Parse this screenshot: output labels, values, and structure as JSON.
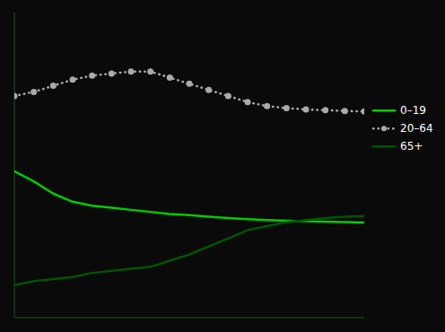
{
  "chart_data": {
    "type": "line",
    "x": [
      1971,
      1976,
      1981,
      1986,
      1991,
      1996,
      2001,
      2006,
      2011,
      2016,
      2021,
      2026,
      2031,
      2036,
      2041,
      2046,
      2051,
      2056,
      2061
    ],
    "series": [
      {
        "name": "0–19",
        "color": "#00cc00",
        "line_style": "solid",
        "values": [
          36.0,
          33.5,
          30.5,
          28.5,
          27.5,
          27.0,
          26.5,
          26.0,
          25.5,
          25.2,
          24.8,
          24.5,
          24.2,
          24.0,
          23.8,
          23.7,
          23.6,
          23.5,
          23.4
        ]
      },
      {
        "name": "20–64",
        "color": "#aaaaaa",
        "line_style": "dotted",
        "marker": "circle",
        "values": [
          54.5,
          55.5,
          57.0,
          58.5,
          59.5,
          60.0,
          60.5,
          60.5,
          59.0,
          57.5,
          56.0,
          54.5,
          53.0,
          52.0,
          51.5,
          51.2,
          51.0,
          50.8,
          50.7
        ]
      },
      {
        "name": "65+",
        "color": "#005500",
        "line_style": "solid",
        "values": [
          8.0,
          9.0,
          9.5,
          10.0,
          11.0,
          11.5,
          12.0,
          12.5,
          14.0,
          15.5,
          17.5,
          19.5,
          21.5,
          22.5,
          23.5,
          24.0,
          24.5,
          24.8,
          25.0
        ]
      }
    ],
    "xlim": [
      1971,
      2061
    ],
    "ylim": [
      0,
      75
    ],
    "xticks": [],
    "yticks": [],
    "tick_labels": false,
    "legend": "right"
  }
}
